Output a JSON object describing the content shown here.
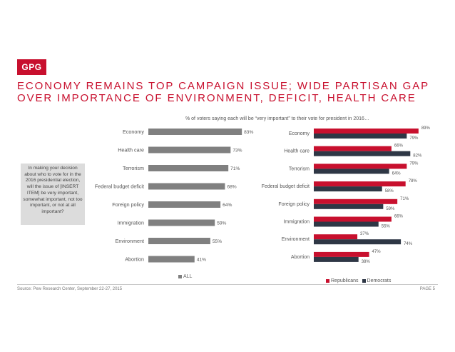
{
  "brand": {
    "logo_text": "GPG",
    "accent_color": "#c8102e"
  },
  "headline": {
    "line1": "ECONOMY REMAINS TOP CAMPAIGN ISSUE; WIDE PARTISAN GAP",
    "line2": "OVER IMPORTANCE OF ENVIRONMENT, DEFICIT, HEALTH CARE"
  },
  "subtitle": "% of voters saying each will be “very important” to their vote for president in 2016…",
  "question": "In making your decision about who to vote for in the 2016 presidential election, will the issue of [INSERT ITEM] be very important, somewhat important, not too important, or not at all important?",
  "chart_data": [
    {
      "type": "bar",
      "orientation": "horizontal",
      "categories": [
        "Economy",
        "Health care",
        "Terrorism",
        "Federal budget deficit",
        "Foreign policy",
        "Immigration",
        "Environment",
        "Abortion"
      ],
      "series": [
        {
          "name": "ALL",
          "color": "#808080",
          "values": [
            83,
            73,
            71,
            68,
            64,
            59,
            55,
            41
          ]
        }
      ],
      "value_suffix": "%",
      "xlim": [
        0,
        100
      ],
      "grid": false,
      "legend": "bottom"
    },
    {
      "type": "bar",
      "orientation": "horizontal",
      "categories": [
        "Economy",
        "Health care",
        "Terrorism",
        "Federal budget deficit",
        "Foreign policy",
        "Immigration",
        "Environment",
        "Abortion"
      ],
      "series": [
        {
          "name": "Republicans",
          "color": "#c8102e",
          "values": [
            89,
            66,
            79,
            78,
            71,
            66,
            37,
            47
          ]
        },
        {
          "name": "Democrats",
          "color": "#2e3745",
          "values": [
            79,
            82,
            64,
            58,
            59,
            55,
            74,
            38
          ]
        }
      ],
      "value_suffix": "%",
      "xlim": [
        0,
        100
      ],
      "grid": false,
      "legend": "bottom"
    }
  ],
  "footer": {
    "source": "Source: Pew Research Center, September 22-27, 2015",
    "page": "PAGE 5"
  }
}
